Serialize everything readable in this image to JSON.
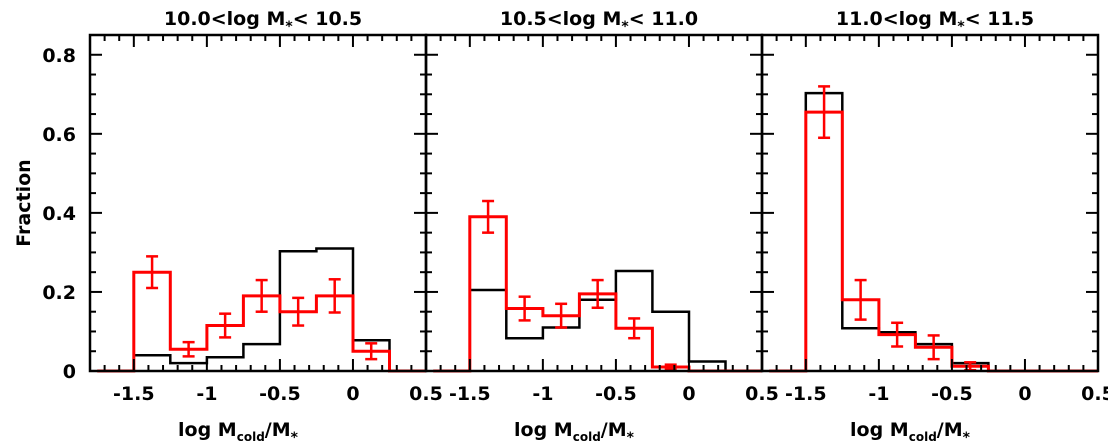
{
  "chart_data": {
    "type": "histogram",
    "ylabel": "Fraction",
    "ylim": [
      0,
      0.85
    ],
    "xlim": [
      -1.8,
      0.5
    ],
    "yticks": [
      0,
      0.2,
      0.4,
      0.6,
      0.8
    ],
    "yticklabels": [
      "0",
      "0.2",
      "0.4",
      "0.6",
      "0.8"
    ],
    "xticks": [
      -1.5,
      -1,
      -0.5,
      0,
      0.5
    ],
    "xticklabels": [
      "-1.5",
      "-1",
      "-0.5",
      "0",
      "0.5"
    ],
    "xlabel": {
      "main": "log M",
      "sub": "cold",
      "tail": "/M",
      "star": "*"
    },
    "bin_edges": [
      -1.75,
      -1.5,
      -1.25,
      -1.0,
      -0.75,
      -0.5,
      -0.25,
      0.0,
      0.25,
      0.5
    ],
    "panels": [
      {
        "title": "10.0<log M",
        "title_star": "*",
        "title_tail": "< 10.5",
        "series": [
          {
            "color": "#000000",
            "values": [
              0.0,
              0.04,
              0.02,
              0.035,
              0.068,
              0.303,
              0.31,
              0.078,
              0.0
            ]
          },
          {
            "color": "#ff0000",
            "values": [
              0.0,
              0.25,
              0.055,
              0.115,
              0.19,
              0.15,
              0.19,
              0.05,
              0.0
            ],
            "errors": [
              0.0,
              0.04,
              0.018,
              0.03,
              0.04,
              0.035,
              0.042,
              0.02,
              0.0
            ]
          }
        ]
      },
      {
        "title": "10.5<log M",
        "title_star": "*",
        "title_tail": "< 11.0",
        "series": [
          {
            "color": "#000000",
            "values": [
              0.0,
              0.205,
              0.083,
              0.11,
              0.18,
              0.253,
              0.15,
              0.024,
              0.0
            ]
          },
          {
            "color": "#ff0000",
            "values": [
              0.0,
              0.39,
              0.158,
              0.14,
              0.195,
              0.108,
              0.01,
              0.0,
              0.0
            ],
            "errors": [
              0.0,
              0.04,
              0.03,
              0.03,
              0.035,
              0.025,
              0.006,
              0.0,
              0.0
            ]
          }
        ]
      },
      {
        "title": "11.0<log M",
        "title_star": "*",
        "title_tail": "< 11.5",
        "series": [
          {
            "color": "#000000",
            "values": [
              0.0,
              0.703,
              0.108,
              0.098,
              0.068,
              0.02,
              0.0,
              0.0,
              0.0
            ]
          },
          {
            "color": "#ff0000",
            "values": [
              0.0,
              0.655,
              0.18,
              0.092,
              0.06,
              0.012,
              0.0,
              0.0,
              0.0
            ],
            "errors": [
              0.0,
              0.065,
              0.05,
              0.03,
              0.03,
              0.01,
              0.0,
              0.0,
              0.0
            ]
          }
        ]
      }
    ]
  }
}
